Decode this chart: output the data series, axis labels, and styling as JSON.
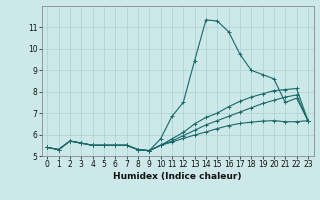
{
  "title": "",
  "xlabel": "Humidex (Indice chaleur)",
  "ylabel": "",
  "bg_color": "#cce8e8",
  "grid_color": "#aad0d0",
  "line_color": "#1a6868",
  "xlim": [
    -0.5,
    23.5
  ],
  "ylim": [
    5,
    12
  ],
  "yticks": [
    5,
    6,
    7,
    8,
    9,
    10,
    11
  ],
  "xticks": [
    0,
    1,
    2,
    3,
    4,
    5,
    6,
    7,
    8,
    9,
    10,
    11,
    12,
    13,
    14,
    15,
    16,
    17,
    18,
    19,
    20,
    21,
    22,
    23
  ],
  "series": [
    {
      "x": [
        0,
        1,
        2,
        3,
        4,
        5,
        6,
        7,
        8,
        9,
        10,
        11,
        12,
        13,
        14,
        15,
        16,
        17,
        18,
        19,
        20,
        21,
        22,
        23
      ],
      "y": [
        5.4,
        5.3,
        5.7,
        5.6,
        5.5,
        5.5,
        5.5,
        5.5,
        5.3,
        5.25,
        5.8,
        6.85,
        7.5,
        9.45,
        11.35,
        11.3,
        10.8,
        9.75,
        9.0,
        8.8,
        8.6,
        7.5,
        7.7,
        6.65
      ]
    },
    {
      "x": [
        0,
        1,
        2,
        3,
        4,
        5,
        6,
        7,
        8,
        9,
        10,
        11,
        12,
        13,
        14,
        15,
        16,
        17,
        18,
        19,
        20,
        21,
        22,
        23
      ],
      "y": [
        5.4,
        5.3,
        5.7,
        5.6,
        5.5,
        5.5,
        5.5,
        5.5,
        5.3,
        5.25,
        5.5,
        5.8,
        6.1,
        6.5,
        6.8,
        7.0,
        7.3,
        7.55,
        7.75,
        7.9,
        8.05,
        8.1,
        8.15,
        6.65
      ]
    },
    {
      "x": [
        0,
        1,
        2,
        3,
        4,
        5,
        6,
        7,
        8,
        9,
        10,
        11,
        12,
        13,
        14,
        15,
        16,
        17,
        18,
        19,
        20,
        21,
        22,
        23
      ],
      "y": [
        5.4,
        5.3,
        5.7,
        5.6,
        5.5,
        5.5,
        5.5,
        5.5,
        5.3,
        5.25,
        5.5,
        5.7,
        5.95,
        6.2,
        6.45,
        6.65,
        6.85,
        7.05,
        7.25,
        7.45,
        7.6,
        7.75,
        7.85,
        6.65
      ]
    },
    {
      "x": [
        0,
        1,
        2,
        3,
        4,
        5,
        6,
        7,
        8,
        9,
        10,
        11,
        12,
        13,
        14,
        15,
        16,
        17,
        18,
        19,
        20,
        21,
        22,
        23
      ],
      "y": [
        5.4,
        5.3,
        5.7,
        5.6,
        5.5,
        5.5,
        5.5,
        5.5,
        5.3,
        5.25,
        5.5,
        5.65,
        5.82,
        5.98,
        6.12,
        6.28,
        6.42,
        6.52,
        6.58,
        6.63,
        6.65,
        6.6,
        6.6,
        6.65
      ]
    }
  ]
}
